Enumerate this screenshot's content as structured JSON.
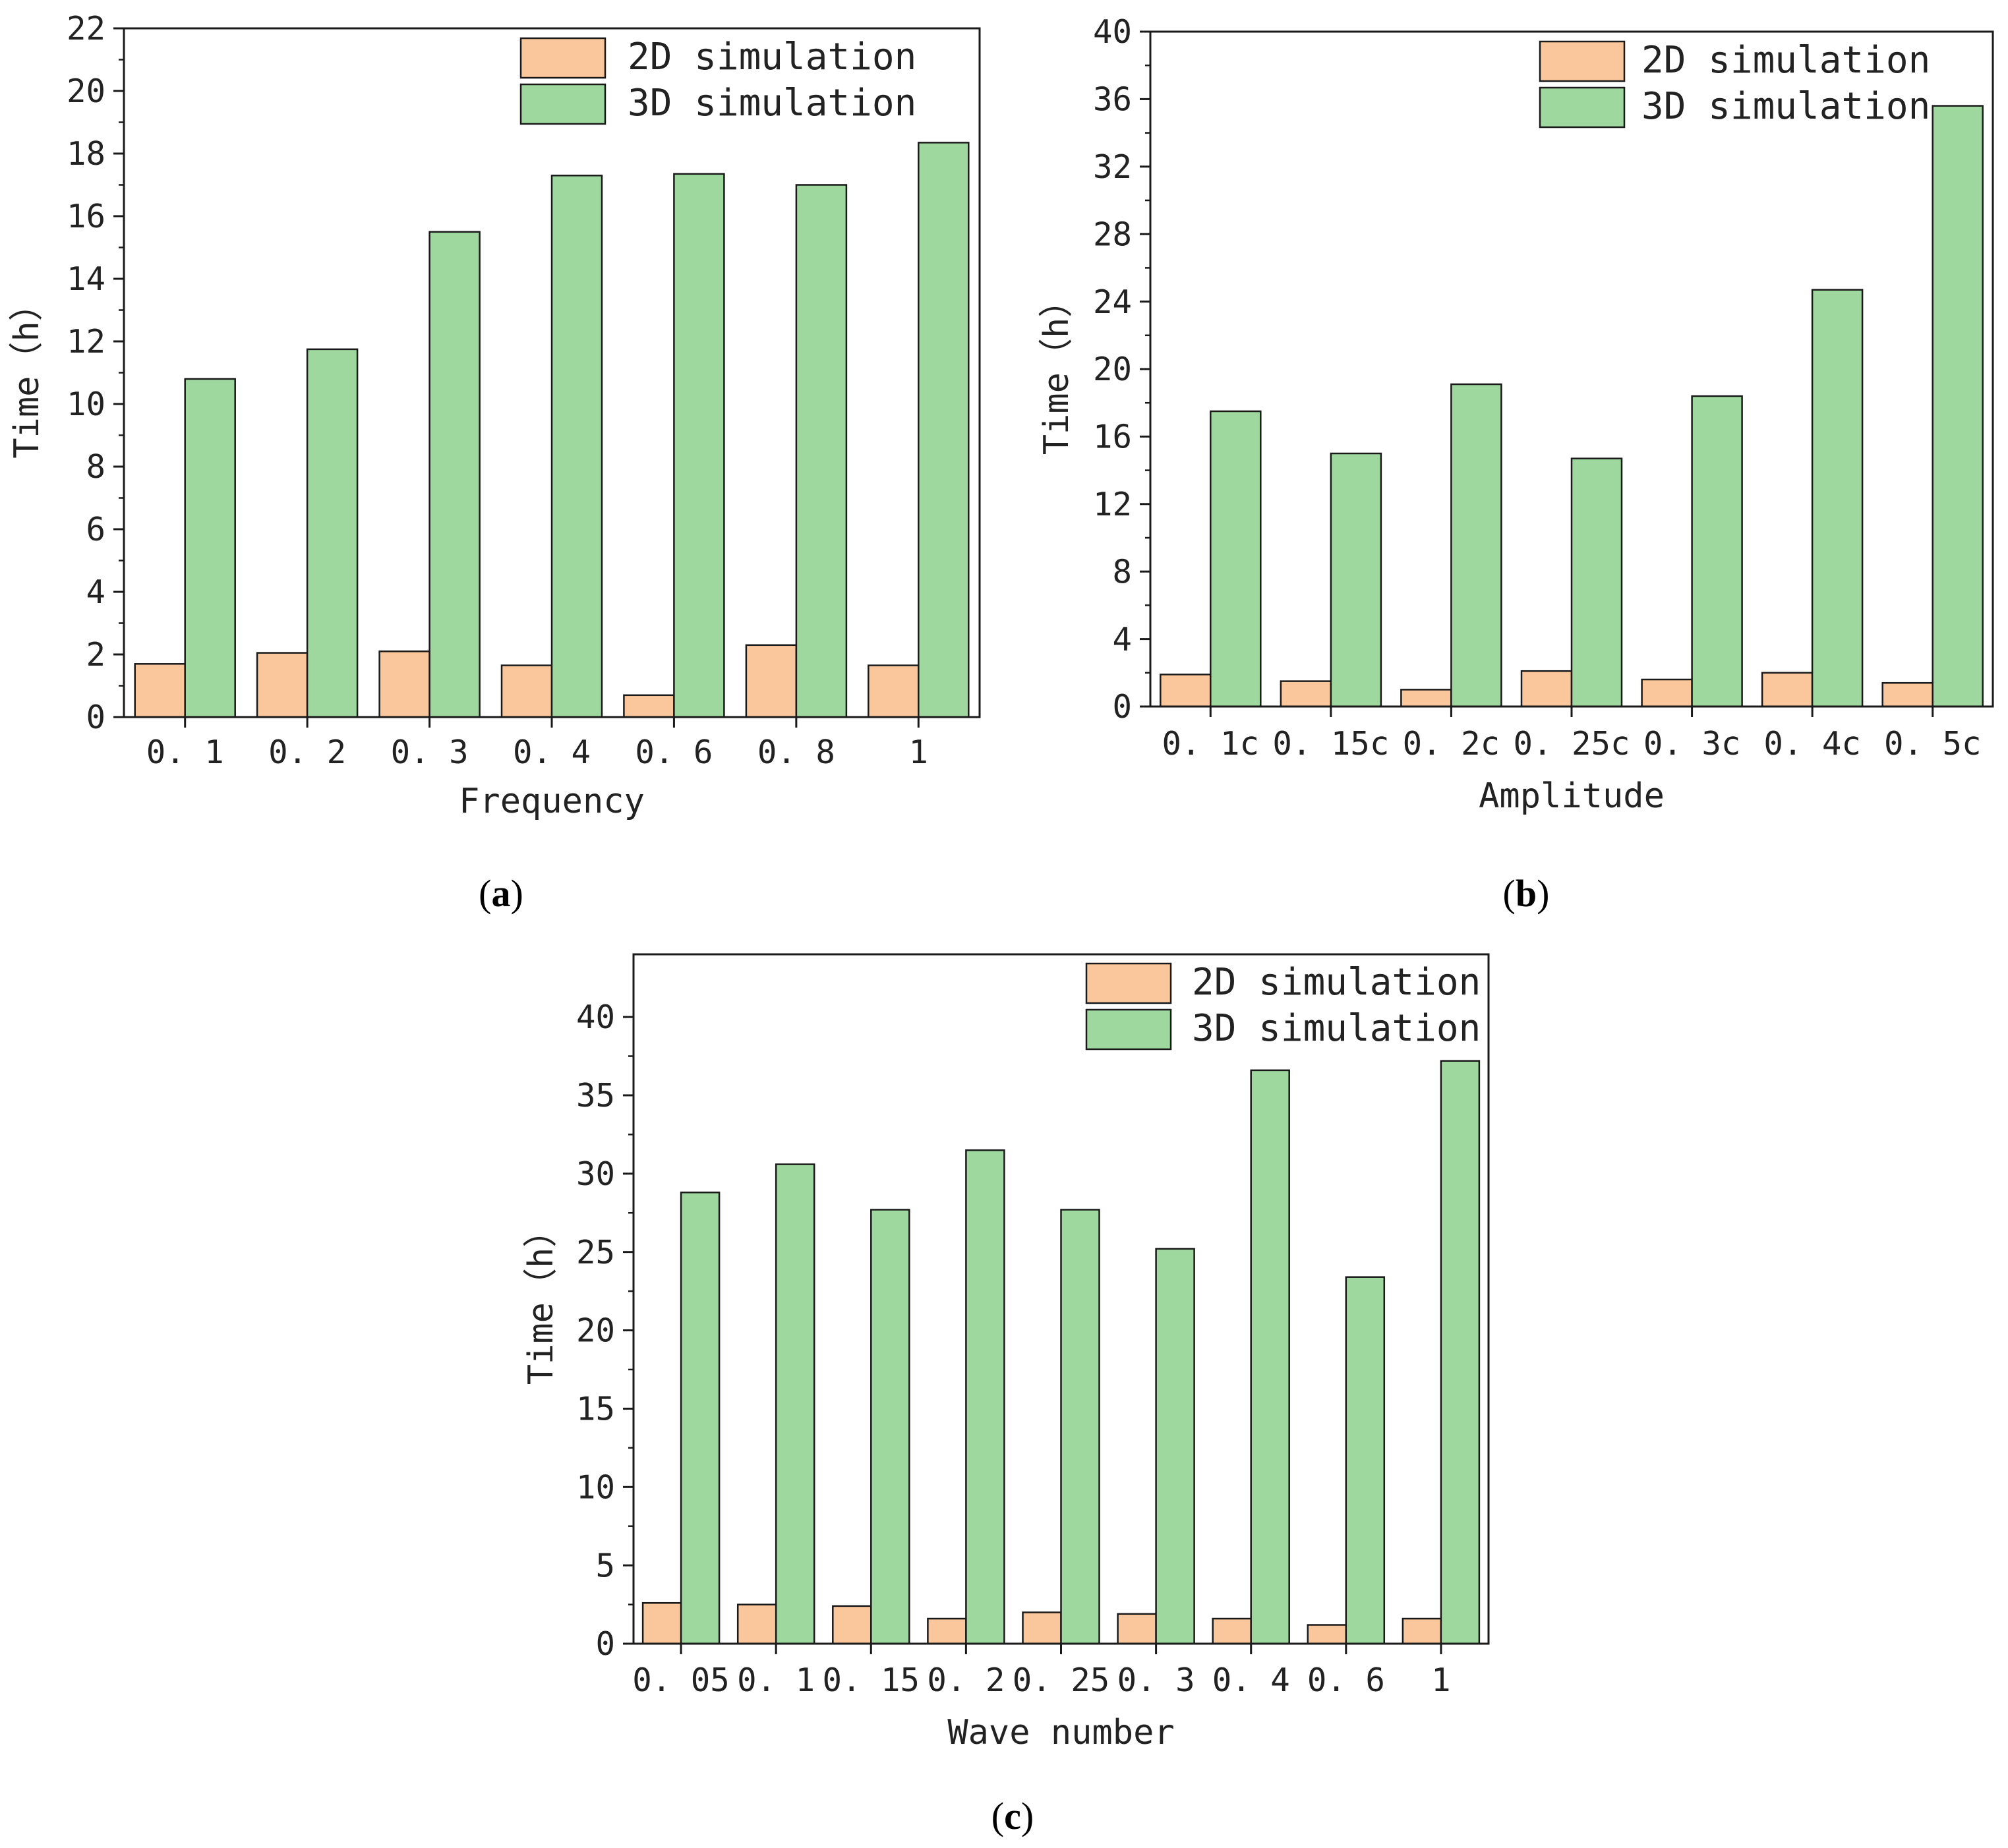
{
  "colors": {
    "series_2d": "#f9c79b",
    "series_3d": "#9ed89e",
    "stroke": "#1a1a1a"
  },
  "chart_data": [
    {
      "id": "a",
      "panel_label": "a",
      "type": "bar",
      "xlabel": "Frequency",
      "ylabel": "Time（h）",
      "ylim": [
        0,
        22
      ],
      "yticks": [
        0,
        2,
        4,
        6,
        8,
        10,
        12,
        14,
        16,
        18,
        20,
        22
      ],
      "categories": [
        "0.1",
        "0.2",
        "0.3",
        "0.4",
        "0.6",
        "0.8",
        "1"
      ],
      "legend_position": "top-right",
      "series": [
        {
          "name": "2D simulation",
          "values": [
            1.7,
            2.05,
            2.1,
            1.65,
            0.7,
            2.3,
            1.65
          ]
        },
        {
          "name": "3D simulation",
          "values": [
            10.8,
            11.75,
            15.5,
            17.3,
            17.35,
            17.0,
            18.35
          ]
        }
      ]
    },
    {
      "id": "b",
      "panel_label": "b",
      "type": "bar",
      "xlabel": "Amplitude",
      "ylabel": "Time（h）",
      "ylim": [
        0,
        40
      ],
      "yticks": [
        0,
        4,
        8,
        12,
        16,
        20,
        24,
        28,
        32,
        36,
        40
      ],
      "categories": [
        "0.1c",
        "0.15c",
        "0.2c",
        "0.25c",
        "0.3c",
        "0.4c",
        "0.5c"
      ],
      "legend_position": "top-right",
      "series": [
        {
          "name": "2D simulation",
          "values": [
            1.9,
            1.5,
            1.0,
            2.1,
            1.6,
            2.0,
            1.4
          ]
        },
        {
          "name": "3D simulation",
          "values": [
            17.5,
            15.0,
            19.1,
            14.7,
            18.4,
            24.7,
            35.6
          ]
        }
      ]
    },
    {
      "id": "c",
      "panel_label": "c",
      "type": "bar",
      "xlabel": "Wave number",
      "ylabel": "Time（h）",
      "ylim": [
        0,
        44
      ],
      "yticks": [
        0,
        5,
        10,
        15,
        20,
        25,
        30,
        35,
        40
      ],
      "categories": [
        "0.05",
        "0.1",
        "0.15",
        "0.2",
        "0.25",
        "0.3",
        "0.4",
        "0.6",
        "1"
      ],
      "legend_position": "top-right",
      "series": [
        {
          "name": "2D simulation",
          "values": [
            2.6,
            2.5,
            2.4,
            1.6,
            2.0,
            1.9,
            1.6,
            1.2,
            1.6
          ]
        },
        {
          "name": "3D simulation",
          "values": [
            28.8,
            30.6,
            27.7,
            31.5,
            27.7,
            25.2,
            36.6,
            23.4,
            37.2
          ]
        }
      ]
    }
  ]
}
